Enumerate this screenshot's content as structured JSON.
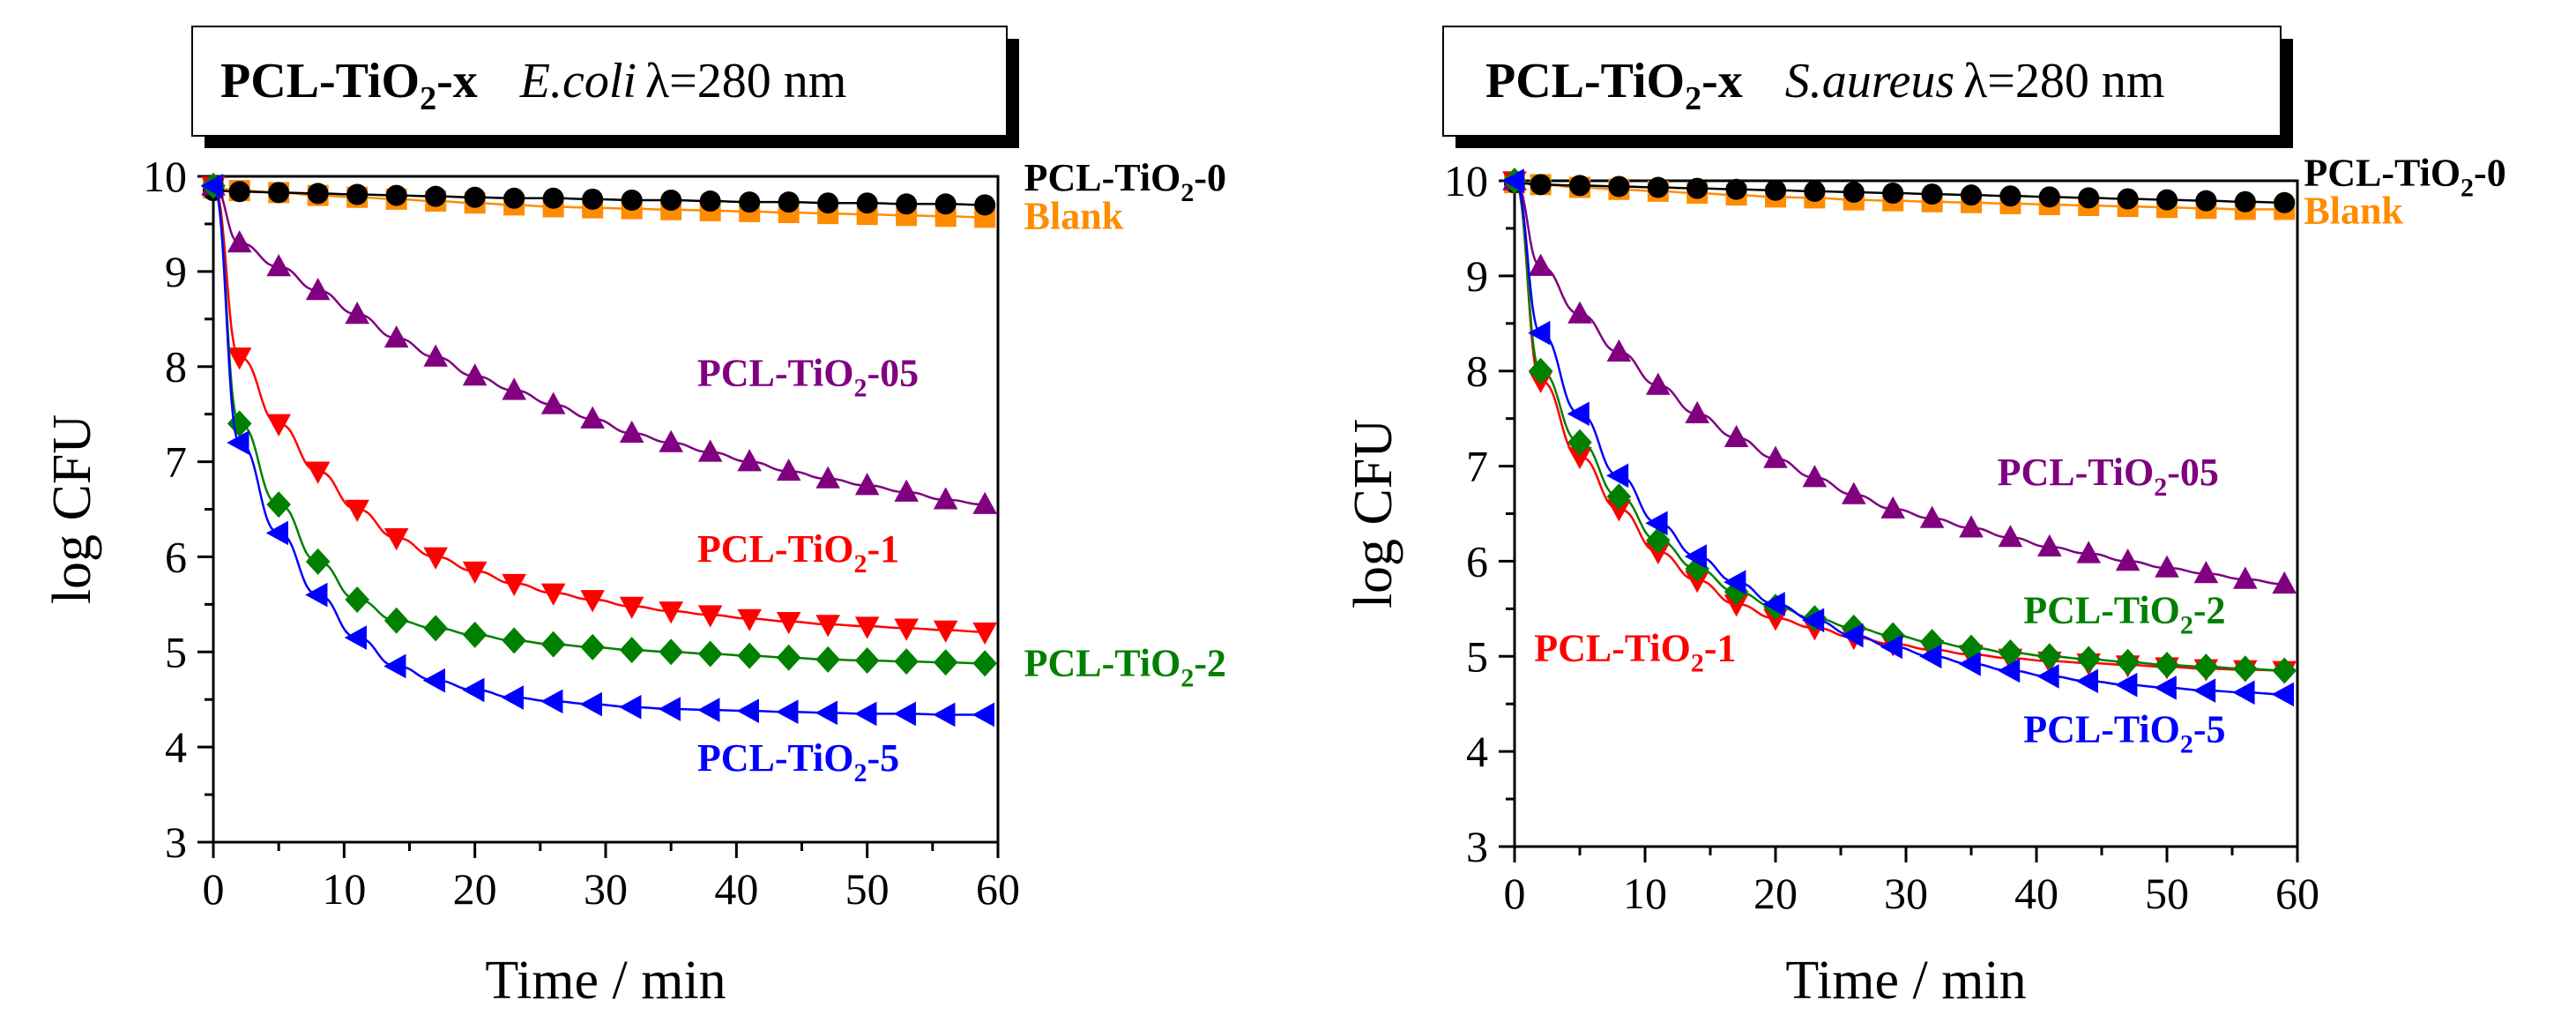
{
  "chart_data": [
    {
      "type": "line",
      "title": {
        "prefix": "PCL-TiO",
        "sub": "2",
        "suffix": "-x",
        "organism": "E.coli",
        "wavelength": "λ=280 nm"
      },
      "xlabel": "Time / min",
      "ylabel": "log CFU",
      "xlim": [
        0,
        60
      ],
      "ylim": [
        3,
        10
      ],
      "xticks": [
        "0",
        "10",
        "20",
        "30",
        "40",
        "50",
        "60"
      ],
      "yticks": [
        "3",
        "4",
        "5",
        "6",
        "7",
        "8",
        "9",
        "10"
      ],
      "grid": false,
      "series": [
        {
          "name": "Blank",
          "label_parts": [
            "Blank"
          ],
          "color": "#ff8c00",
          "marker": "square",
          "x": [
            0,
            2,
            5,
            8,
            11,
            14,
            17,
            20,
            23,
            26,
            29,
            32,
            35,
            38,
            41,
            44,
            47,
            50,
            53,
            56,
            59
          ],
          "values": [
            9.88,
            9.85,
            9.83,
            9.8,
            9.78,
            9.76,
            9.74,
            9.72,
            9.7,
            9.68,
            9.67,
            9.66,
            9.65,
            9.64,
            9.63,
            9.62,
            9.61,
            9.6,
            9.59,
            9.58,
            9.57
          ]
        },
        {
          "name": "PCL-TiO2-0",
          "label_parts": [
            "PCL-TiO",
            "2",
            "-0"
          ],
          "color": "#000000",
          "marker": "circle",
          "x": [
            0,
            2,
            5,
            8,
            11,
            14,
            17,
            20,
            23,
            26,
            29,
            32,
            35,
            38,
            41,
            44,
            47,
            50,
            53,
            56,
            59
          ],
          "values": [
            9.85,
            9.84,
            9.83,
            9.82,
            9.81,
            9.8,
            9.79,
            9.78,
            9.77,
            9.77,
            9.76,
            9.75,
            9.75,
            9.74,
            9.73,
            9.73,
            9.72,
            9.72,
            9.71,
            9.71,
            9.7
          ]
        },
        {
          "name": "PCL-TiO2-05",
          "label_parts": [
            "PCL-TiO",
            "2",
            "-05"
          ],
          "color": "#800080",
          "marker": "triangle-up",
          "x": [
            0,
            2,
            5,
            8,
            11,
            14,
            17,
            20,
            23,
            26,
            29,
            32,
            35,
            38,
            41,
            44,
            47,
            50,
            53,
            56,
            59
          ],
          "values": [
            9.9,
            9.3,
            9.05,
            8.8,
            8.55,
            8.3,
            8.1,
            7.9,
            7.75,
            7.6,
            7.45,
            7.3,
            7.2,
            7.1,
            7.0,
            6.9,
            6.82,
            6.75,
            6.68,
            6.6,
            6.55
          ]
        },
        {
          "name": "PCL-TiO2-1",
          "label_parts": [
            "PCL-TiO",
            "2",
            "-1"
          ],
          "color": "#ff0000",
          "marker": "triangle-down",
          "x": [
            0,
            2,
            5,
            8,
            11,
            14,
            17,
            20,
            23,
            26,
            29,
            32,
            35,
            38,
            41,
            44,
            47,
            50,
            53,
            56,
            59
          ],
          "values": [
            9.9,
            8.1,
            7.4,
            6.9,
            6.5,
            6.2,
            6.0,
            5.85,
            5.72,
            5.62,
            5.55,
            5.48,
            5.43,
            5.39,
            5.35,
            5.32,
            5.29,
            5.27,
            5.25,
            5.23,
            5.21
          ]
        },
        {
          "name": "PCL-TiO2-2",
          "label_parts": [
            "PCL-TiO",
            "2",
            "-2"
          ],
          "color": "#008000",
          "marker": "diamond",
          "x": [
            0,
            2,
            5,
            8,
            11,
            14,
            17,
            20,
            23,
            26,
            29,
            32,
            35,
            38,
            41,
            44,
            47,
            50,
            53,
            56,
            59
          ],
          "values": [
            9.9,
            7.4,
            6.55,
            5.95,
            5.55,
            5.33,
            5.25,
            5.18,
            5.12,
            5.08,
            5.05,
            5.02,
            5.0,
            4.98,
            4.96,
            4.94,
            4.92,
            4.91,
            4.9,
            4.89,
            4.88
          ]
        },
        {
          "name": "PCL-TiO2-5",
          "label_parts": [
            "PCL-TiO",
            "2",
            "-5"
          ],
          "color": "#0000ff",
          "marker": "triangle-left",
          "x": [
            0,
            2,
            5,
            8,
            11,
            14,
            17,
            20,
            23,
            26,
            29,
            32,
            35,
            38,
            41,
            44,
            47,
            50,
            53,
            56,
            59
          ],
          "values": [
            9.9,
            7.2,
            6.25,
            5.6,
            5.15,
            4.85,
            4.7,
            4.6,
            4.52,
            4.48,
            4.45,
            4.42,
            4.4,
            4.39,
            4.38,
            4.37,
            4.36,
            4.35,
            4.35,
            4.34,
            4.34
          ]
        }
      ],
      "series_labels": [
        {
          "series": "PCL-TiO2-0",
          "x": 62,
          "y": 9.85
        },
        {
          "series": "Blank",
          "x": 62,
          "y": 9.45
        },
        {
          "series": "PCL-TiO2-05",
          "x": 37,
          "y": 7.8
        },
        {
          "series": "PCL-TiO2-1",
          "x": 37,
          "y": 5.95
        },
        {
          "series": "PCL-TiO2-2",
          "x": 62,
          "y": 4.75
        },
        {
          "series": "PCL-TiO2-5",
          "x": 37,
          "y": 3.75
        }
      ]
    },
    {
      "type": "line",
      "title": {
        "prefix": "PCL-TiO",
        "sub": "2",
        "suffix": "-x",
        "organism": "S.aureus",
        "wavelength": "λ=280 nm"
      },
      "xlabel": "Time / min",
      "ylabel": "log CFU",
      "xlim": [
        0,
        60
      ],
      "ylim": [
        3,
        10
      ],
      "xticks": [
        "0",
        "10",
        "20",
        "30",
        "40",
        "50",
        "60"
      ],
      "yticks": [
        "3",
        "4",
        "5",
        "6",
        "7",
        "8",
        "9",
        "10"
      ],
      "grid": false,
      "series": [
        {
          "name": "Blank",
          "label_parts": [
            "Blank"
          ],
          "color": "#ff8c00",
          "marker": "square",
          "x": [
            0,
            2,
            5,
            8,
            11,
            14,
            17,
            20,
            23,
            26,
            29,
            32,
            35,
            38,
            41,
            44,
            47,
            50,
            53,
            56,
            59
          ],
          "values": [
            9.98,
            9.96,
            9.93,
            9.91,
            9.89,
            9.87,
            9.85,
            9.83,
            9.82,
            9.8,
            9.79,
            9.78,
            9.77,
            9.76,
            9.75,
            9.74,
            9.73,
            9.72,
            9.71,
            9.7,
            9.7
          ]
        },
        {
          "name": "PCL-TiO2-0",
          "label_parts": [
            "PCL-TiO",
            "2",
            "-0"
          ],
          "color": "#000000",
          "marker": "circle",
          "x": [
            0,
            2,
            5,
            8,
            11,
            14,
            17,
            20,
            23,
            26,
            29,
            32,
            35,
            38,
            41,
            44,
            47,
            50,
            53,
            56,
            59
          ],
          "values": [
            9.98,
            9.96,
            9.95,
            9.94,
            9.93,
            9.92,
            9.91,
            9.9,
            9.89,
            9.88,
            9.87,
            9.86,
            9.85,
            9.84,
            9.83,
            9.82,
            9.81,
            9.8,
            9.79,
            9.78,
            9.77
          ]
        },
        {
          "name": "PCL-TiO2-05",
          "label_parts": [
            "PCL-TiO",
            "2",
            "-05"
          ],
          "color": "#800080",
          "marker": "triangle-up",
          "x": [
            0,
            2,
            5,
            8,
            11,
            14,
            17,
            20,
            23,
            26,
            29,
            32,
            35,
            38,
            41,
            44,
            47,
            50,
            53,
            56,
            59
          ],
          "values": [
            10.0,
            9.1,
            8.6,
            8.2,
            7.85,
            7.55,
            7.3,
            7.08,
            6.88,
            6.7,
            6.55,
            6.45,
            6.35,
            6.25,
            6.15,
            6.08,
            6.0,
            5.93,
            5.87,
            5.81,
            5.76
          ]
        },
        {
          "name": "PCL-TiO2-1",
          "label_parts": [
            "PCL-TiO",
            "2",
            "-1"
          ],
          "color": "#ff0000",
          "marker": "triangle-down",
          "x": [
            0,
            2,
            5,
            8,
            11,
            14,
            17,
            20,
            23,
            26,
            29,
            32,
            35,
            38,
            41,
            44,
            47,
            50,
            53,
            56,
            59
          ],
          "values": [
            10.0,
            7.9,
            7.1,
            6.55,
            6.1,
            5.8,
            5.55,
            5.4,
            5.3,
            5.2,
            5.13,
            5.07,
            5.02,
            4.98,
            4.95,
            4.93,
            4.91,
            4.89,
            4.87,
            4.86,
            4.85
          ]
        },
        {
          "name": "PCL-TiO2-2",
          "label_parts": [
            "PCL-TiO",
            "2",
            "-2"
          ],
          "color": "#008000",
          "marker": "diamond",
          "x": [
            0,
            2,
            5,
            8,
            11,
            14,
            17,
            20,
            23,
            26,
            29,
            32,
            35,
            38,
            41,
            44,
            47,
            50,
            53,
            56,
            59
          ],
          "values": [
            10.0,
            8.0,
            7.25,
            6.68,
            6.22,
            5.92,
            5.68,
            5.52,
            5.4,
            5.3,
            5.22,
            5.15,
            5.09,
            5.04,
            5.0,
            4.97,
            4.94,
            4.91,
            4.89,
            4.87,
            4.85
          ]
        },
        {
          "name": "PCL-TiO2-5",
          "label_parts": [
            "PCL-TiO",
            "2",
            "-5"
          ],
          "color": "#0000ff",
          "marker": "triangle-left",
          "x": [
            0,
            2,
            5,
            8,
            11,
            14,
            17,
            20,
            23,
            26,
            29,
            32,
            35,
            38,
            41,
            44,
            47,
            50,
            53,
            56,
            59
          ],
          "values": [
            10.0,
            8.4,
            7.55,
            6.9,
            6.4,
            6.05,
            5.78,
            5.55,
            5.38,
            5.22,
            5.1,
            5.0,
            4.92,
            4.85,
            4.79,
            4.74,
            4.7,
            4.67,
            4.64,
            4.62,
            4.6
          ]
        }
      ],
      "series_labels": [
        {
          "series": "PCL-TiO2-0",
          "x": 60.5,
          "y": 9.95
        },
        {
          "series": "Blank",
          "x": 60.5,
          "y": 9.55
        },
        {
          "series": "PCL-TiO2-05",
          "x": 37,
          "y": 6.8
        },
        {
          "series": "PCL-TiO2-1",
          "x": 1.5,
          "y": 4.95
        },
        {
          "series": "PCL-TiO2-2",
          "x": 39,
          "y": 5.35
        },
        {
          "series": "PCL-TiO2-5",
          "x": 39,
          "y": 4.1
        }
      ]
    }
  ]
}
